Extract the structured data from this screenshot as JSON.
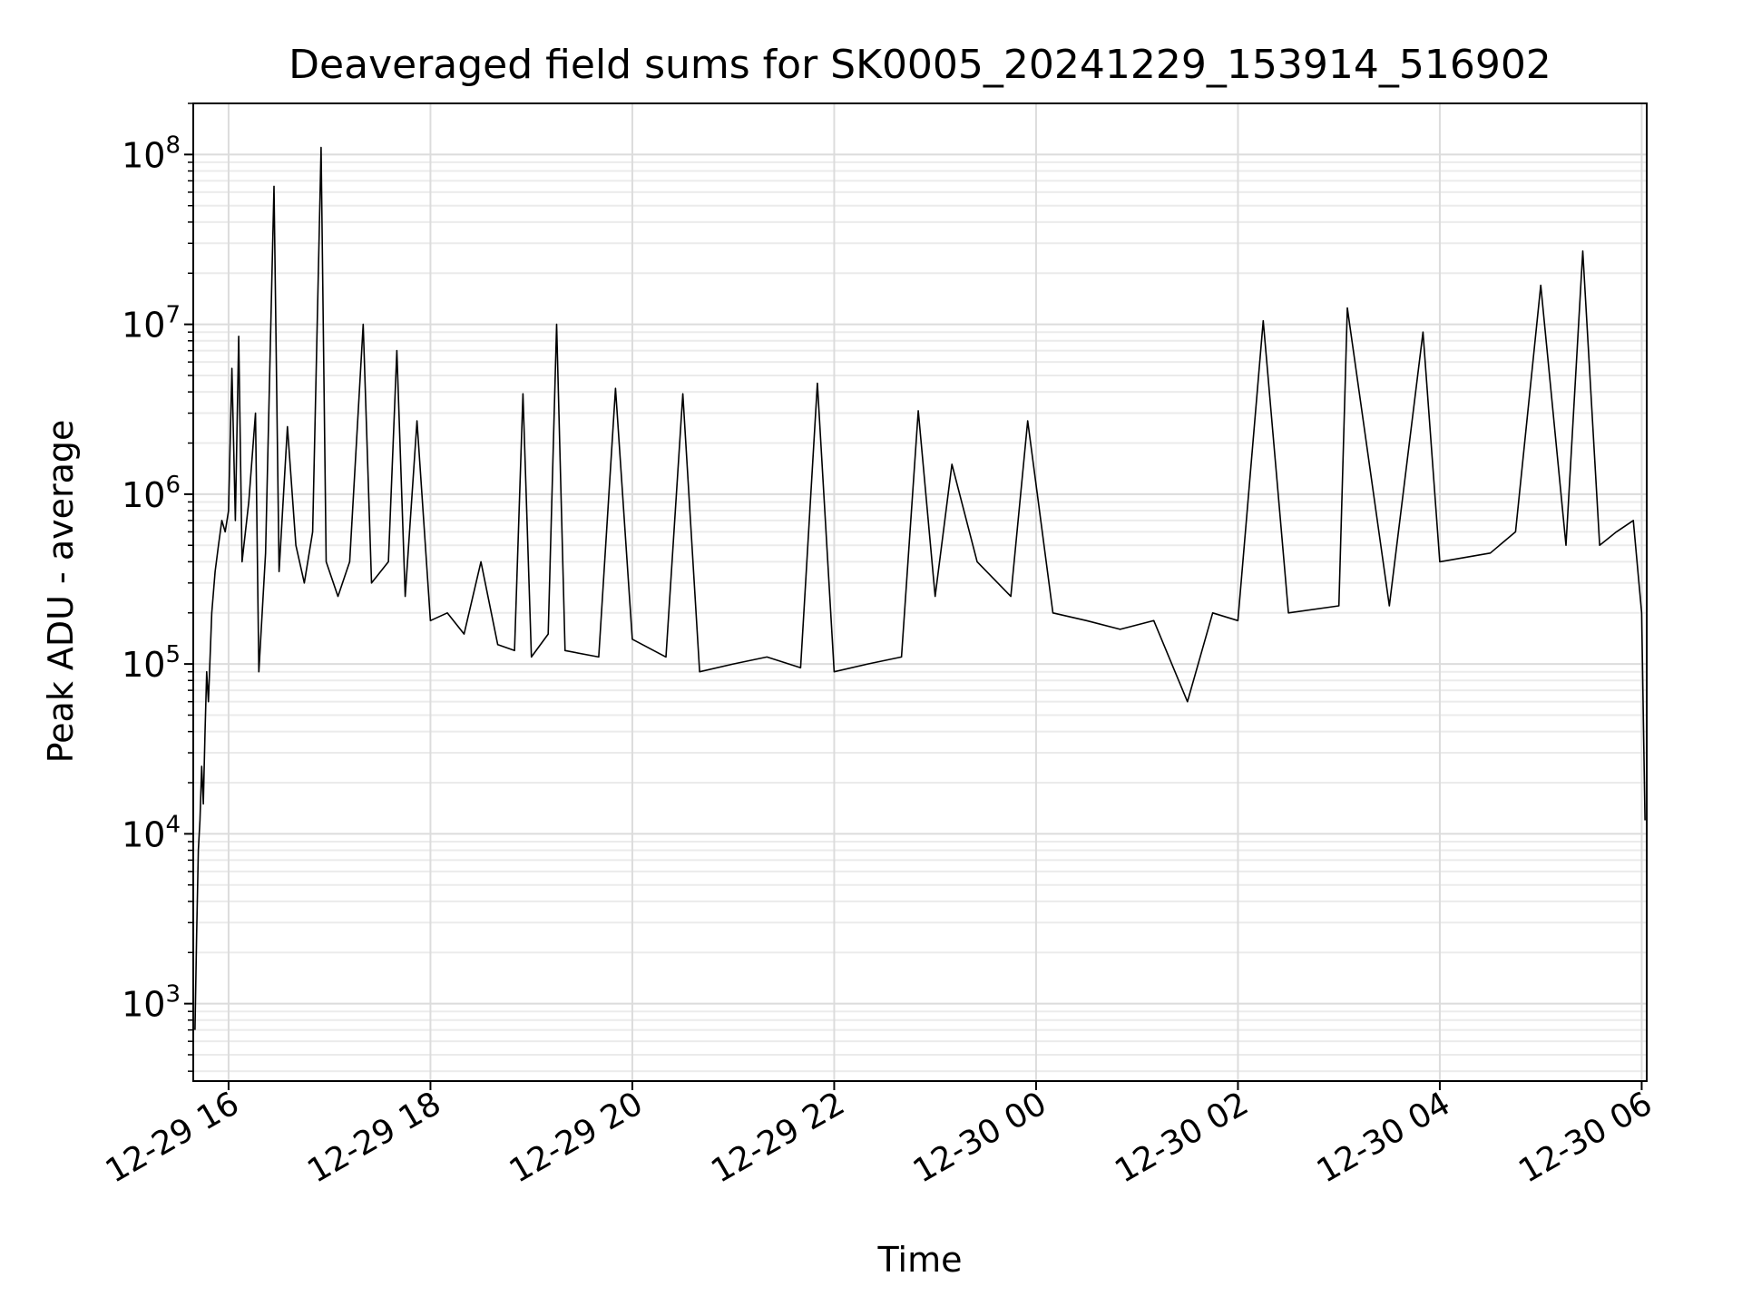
{
  "chart_data": {
    "type": "line",
    "title": "Deaveraged field sums for SK0005_20241229_153914_516902",
    "xlabel": "Time",
    "ylabel": "Peak ADU - average",
    "xlim": [
      "2024-12-29 15:39",
      "2024-12-30 06:03"
    ],
    "ylim": [
      350,
      200000000
    ],
    "yscale": "log",
    "grid": true,
    "x_ticks": [
      {
        "value": "2024-12-29 16:00",
        "label": "12-29 16"
      },
      {
        "value": "2024-12-29 18:00",
        "label": "12-29 18"
      },
      {
        "value": "2024-12-29 20:00",
        "label": "12-29 20"
      },
      {
        "value": "2024-12-29 22:00",
        "label": "12-29 22"
      },
      {
        "value": "2024-12-30 00:00",
        "label": "12-30 00"
      },
      {
        "value": "2024-12-30 02:00",
        "label": "12-30 02"
      },
      {
        "value": "2024-12-30 04:00",
        "label": "12-30 04"
      },
      {
        "value": "2024-12-30 06:00",
        "label": "12-30 06"
      }
    ],
    "y_ticks": [
      {
        "value": 1000,
        "base": "10",
        "exp": "3"
      },
      {
        "value": 10000,
        "base": "10",
        "exp": "4"
      },
      {
        "value": 100000,
        "base": "10",
        "exp": "5"
      },
      {
        "value": 1000000,
        "base": "10",
        "exp": "6"
      },
      {
        "value": 10000000,
        "base": "10",
        "exp": "7"
      },
      {
        "value": 100000000,
        "base": "10",
        "exp": "8"
      }
    ],
    "series": [
      {
        "color": "#000000",
        "points": [
          [
            "2024-12-29 15:40",
            700
          ],
          [
            "2024-12-29 15:41",
            2500
          ],
          [
            "2024-12-29 15:42",
            8000
          ],
          [
            "2024-12-29 15:43",
            12000
          ],
          [
            "2024-12-29 15:44",
            25000
          ],
          [
            "2024-12-29 15:45",
            15000
          ],
          [
            "2024-12-29 15:46",
            40000
          ],
          [
            "2024-12-29 15:47",
            90000
          ],
          [
            "2024-12-29 15:48",
            60000
          ],
          [
            "2024-12-29 15:50",
            200000
          ],
          [
            "2024-12-29 15:52",
            350000
          ],
          [
            "2024-12-29 15:54",
            500000
          ],
          [
            "2024-12-29 15:56",
            700000
          ],
          [
            "2024-12-29 15:58",
            600000
          ],
          [
            "2024-12-29 16:00",
            800000
          ],
          [
            "2024-12-29 16:02",
            5500000
          ],
          [
            "2024-12-29 16:04",
            700000
          ],
          [
            "2024-12-29 16:06",
            8500000
          ],
          [
            "2024-12-29 16:08",
            400000
          ],
          [
            "2024-12-29 16:12",
            900000
          ],
          [
            "2024-12-29 16:16",
            3000000
          ],
          [
            "2024-12-29 16:18",
            90000
          ],
          [
            "2024-12-29 16:22",
            450000
          ],
          [
            "2024-12-29 16:27",
            65000000
          ],
          [
            "2024-12-29 16:30",
            350000
          ],
          [
            "2024-12-29 16:35",
            2500000
          ],
          [
            "2024-12-29 16:40",
            500000
          ],
          [
            "2024-12-29 16:45",
            300000
          ],
          [
            "2024-12-29 16:50",
            600000
          ],
          [
            "2024-12-29 16:55",
            110000000
          ],
          [
            "2024-12-29 16:58",
            400000
          ],
          [
            "2024-12-29 17:05",
            250000
          ],
          [
            "2024-12-29 17:12",
            400000
          ],
          [
            "2024-12-29 17:20",
            10000000
          ],
          [
            "2024-12-29 17:25",
            300000
          ],
          [
            "2024-12-29 17:35",
            400000
          ],
          [
            "2024-12-29 17:40",
            7000000
          ],
          [
            "2024-12-29 17:45",
            250000
          ],
          [
            "2024-12-29 17:52",
            2700000
          ],
          [
            "2024-12-29 18:00",
            180000
          ],
          [
            "2024-12-29 18:10",
            200000
          ],
          [
            "2024-12-29 18:20",
            150000
          ],
          [
            "2024-12-29 18:30",
            400000
          ],
          [
            "2024-12-29 18:40",
            130000
          ],
          [
            "2024-12-29 18:50",
            120000
          ],
          [
            "2024-12-29 18:55",
            3900000
          ],
          [
            "2024-12-29 19:00",
            110000
          ],
          [
            "2024-12-29 19:10",
            150000
          ],
          [
            "2024-12-29 19:15",
            10000000
          ],
          [
            "2024-12-29 19:20",
            120000
          ],
          [
            "2024-12-29 19:40",
            110000
          ],
          [
            "2024-12-29 19:50",
            4200000
          ],
          [
            "2024-12-29 20:00",
            140000
          ],
          [
            "2024-12-29 20:20",
            110000
          ],
          [
            "2024-12-29 20:30",
            3900000
          ],
          [
            "2024-12-29 20:40",
            90000
          ],
          [
            "2024-12-29 21:00",
            100000
          ],
          [
            "2024-12-29 21:20",
            110000
          ],
          [
            "2024-12-29 21:40",
            95000
          ],
          [
            "2024-12-29 21:50",
            4500000
          ],
          [
            "2024-12-29 22:00",
            90000
          ],
          [
            "2024-12-29 22:20",
            100000
          ],
          [
            "2024-12-29 22:40",
            110000
          ],
          [
            "2024-12-29 22:50",
            3100000
          ],
          [
            "2024-12-29 23:00",
            250000
          ],
          [
            "2024-12-29 23:10",
            1500000
          ],
          [
            "2024-12-29 23:25",
            400000
          ],
          [
            "2024-12-29 23:45",
            250000
          ],
          [
            "2024-12-29 23:55",
            2700000
          ],
          [
            "2024-12-30 00:10",
            200000
          ],
          [
            "2024-12-30 00:30",
            180000
          ],
          [
            "2024-12-30 00:50",
            160000
          ],
          [
            "2024-12-30 01:10",
            180000
          ],
          [
            "2024-12-30 01:30",
            60000
          ],
          [
            "2024-12-30 01:45",
            200000
          ],
          [
            "2024-12-30 02:00",
            180000
          ],
          [
            "2024-12-30 02:15",
            10500000
          ],
          [
            "2024-12-30 02:30",
            200000
          ],
          [
            "2024-12-30 03:00",
            220000
          ],
          [
            "2024-12-30 03:05",
            12500000
          ],
          [
            "2024-12-30 03:30",
            220000
          ],
          [
            "2024-12-30 03:50",
            9000000
          ],
          [
            "2024-12-30 04:00",
            400000
          ],
          [
            "2024-12-30 04:30",
            450000
          ],
          [
            "2024-12-30 04:45",
            600000
          ],
          [
            "2024-12-30 05:00",
            17000000
          ],
          [
            "2024-12-30 05:15",
            500000
          ],
          [
            "2024-12-30 05:25",
            27000000
          ],
          [
            "2024-12-30 05:35",
            500000
          ],
          [
            "2024-12-30 05:45",
            600000
          ],
          [
            "2024-12-30 05:55",
            700000
          ],
          [
            "2024-12-30 06:00",
            200000
          ],
          [
            "2024-12-30 06:02",
            12000
          ]
        ]
      }
    ]
  }
}
